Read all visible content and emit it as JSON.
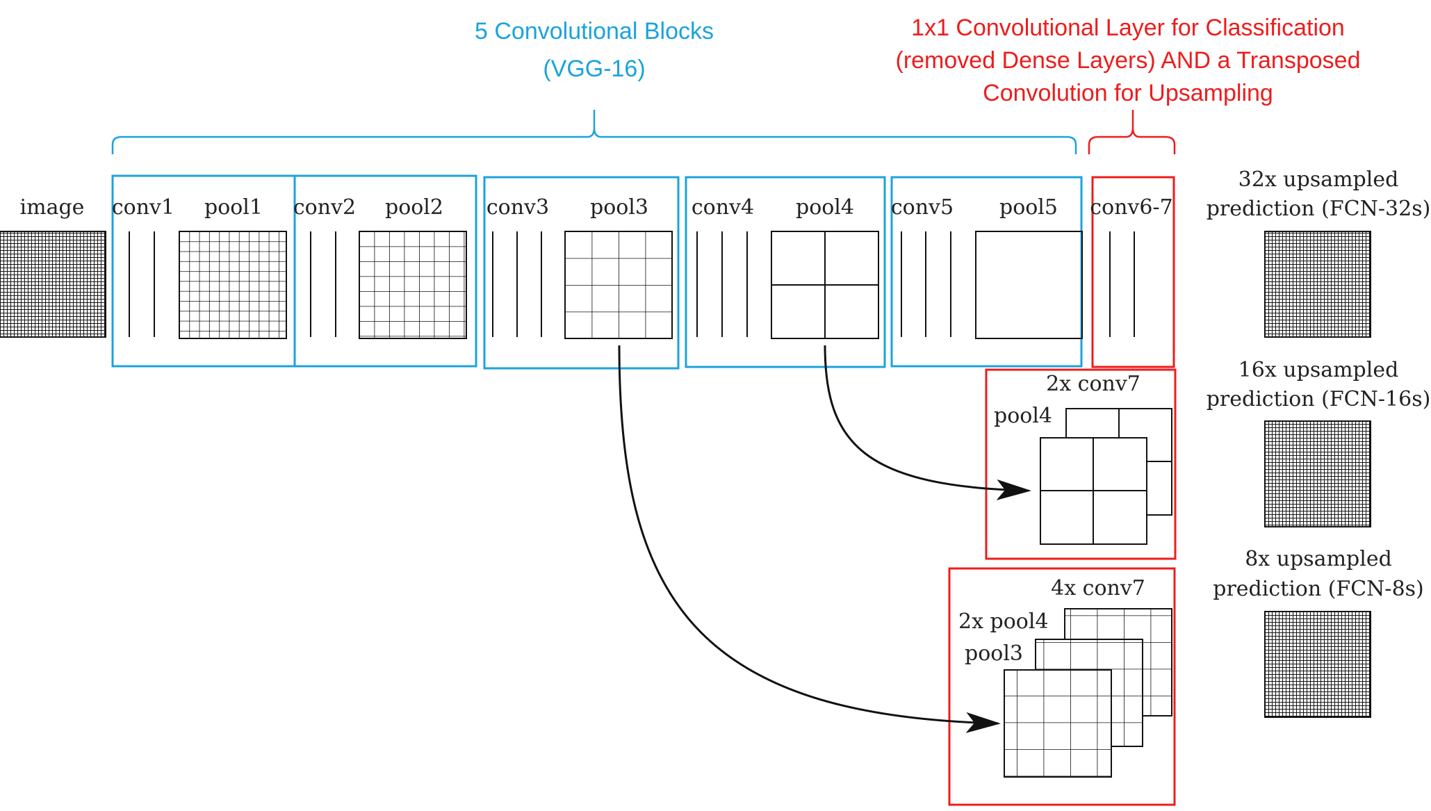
{
  "colors": {
    "blue": "#1aa3dc",
    "red": "#ee1c1c",
    "ink": "#111111"
  },
  "headers": {
    "vgg_line1": "5 Convolutional Blocks",
    "vgg_line2": "(VGG-16)",
    "cls_line1": "1x1 Convolutional Layer for Classification",
    "cls_line2": "(removed Dense Layers) AND a Transposed",
    "cls_line3": "Convolution for Upsampling"
  },
  "labels": {
    "image": "image",
    "conv1": "conv1",
    "pool1": "pool1",
    "conv2": "conv2",
    "pool2": "pool2",
    "conv3": "conv3",
    "pool3": "pool3",
    "conv4": "conv4",
    "pool4": "pool4",
    "conv5": "conv5",
    "pool5": "pool5",
    "conv67": "conv6-7"
  },
  "fuse16": {
    "title": "2x conv7",
    "pool4": "pool4"
  },
  "fuse8": {
    "title": "4x conv7",
    "pool4": "2x pool4",
    "pool3": "pool3"
  },
  "outputs": {
    "fcn32_line1": "32x upsampled",
    "fcn32_line2": "prediction (FCN-32s)",
    "fcn16_line1": "16x upsampled",
    "fcn16_line2": "prediction (FCN-16s)",
    "fcn8_line1": "8x upsampled",
    "fcn8_line2": "prediction (FCN-8s)"
  }
}
